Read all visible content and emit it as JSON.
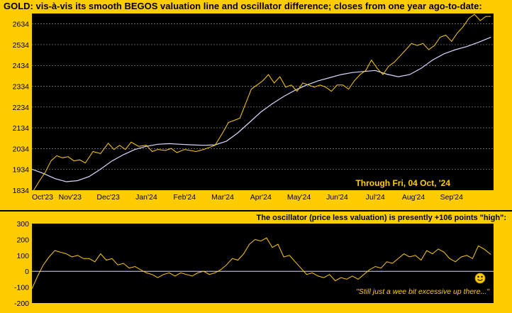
{
  "header": {
    "title": "GOLD:  vis-à-vis its smooth BEGOS valuation line and oscillator difference; closes from one year ago-to-date:"
  },
  "annotations": {
    "through_date": "Through Fri, 04 Oct, '24",
    "osc_title": "The oscillator (price less valuation) is presently +106 points \"high\":",
    "quote": "\"Still just a wee bit excessive up there...\""
  },
  "colors": {
    "background": "#ffcc00",
    "plot_bg": "#000000",
    "price_line": "#ffcc00",
    "valuation_line": "#d8d8ff",
    "grid": "#888888",
    "emoji": "#ffcc00"
  },
  "icons": {
    "emoji": "smiley-face-icon"
  },
  "chart_data": [
    {
      "type": "line",
      "title": "GOLD:  vis-à-vis its smooth BEGOS valuation line and oscillator difference; closes from one year ago-to-date:",
      "xlabel": "",
      "ylabel": "",
      "x_ticks": [
        "Oct'23",
        "Nov'23",
        "Dec'23",
        "Jan'24",
        "Feb'24",
        "Mar'24",
        "Apr'24",
        "May'24",
        "Jun'24",
        "Jul'24",
        "Aug'24",
        "Sep'24"
      ],
      "y_ticks": [
        1834,
        1934,
        2034,
        2134,
        2234,
        2334,
        2434,
        2534,
        2634
      ],
      "ylim": [
        1834,
        2684
      ],
      "xlim": [
        0,
        12.1
      ],
      "grid": true,
      "series": [
        {
          "kind": "price",
          "x": [
            0,
            0.2,
            0.35,
            0.5,
            0.65,
            0.8,
            0.95,
            1.1,
            1.25,
            1.4,
            1.6,
            1.8,
            2.0,
            2.15,
            2.3,
            2.45,
            2.6,
            2.8,
            3.0,
            3.15,
            3.3,
            3.5,
            3.65,
            3.8,
            4.0,
            4.15,
            4.3,
            4.5,
            4.65,
            4.8,
            5.0,
            5.15,
            5.3,
            5.45,
            5.6,
            5.75,
            5.9,
            6.05,
            6.2,
            6.35,
            6.5,
            6.65,
            6.8,
            6.95,
            7.1,
            7.25,
            7.4,
            7.55,
            7.7,
            7.85,
            8.0,
            8.15,
            8.3,
            8.45,
            8.6,
            8.75,
            8.9,
            9.05,
            9.2,
            9.35,
            9.5,
            9.65,
            9.8,
            9.95,
            10.1,
            10.25,
            10.4,
            10.55,
            10.7,
            10.85,
            11.0,
            11.15,
            11.3,
            11.45,
            11.6,
            11.75,
            11.9,
            12.03
          ],
          "y": [
            1820,
            1880,
            1920,
            1975,
            2000,
            1990,
            1995,
            1975,
            1980,
            1965,
            2020,
            2010,
            2060,
            2030,
            2050,
            2030,
            2065,
            2045,
            2050,
            2020,
            2030,
            2025,
            2035,
            2015,
            2030,
            2025,
            2020,
            2030,
            2040,
            2050,
            2110,
            2160,
            2170,
            2180,
            2250,
            2320,
            2340,
            2360,
            2390,
            2350,
            2380,
            2330,
            2340,
            2310,
            2350,
            2340,
            2330,
            2340,
            2330,
            2310,
            2340,
            2340,
            2320,
            2360,
            2390,
            2410,
            2460,
            2420,
            2390,
            2430,
            2450,
            2480,
            2510,
            2540,
            2530,
            2540,
            2510,
            2530,
            2570,
            2580,
            2550,
            2590,
            2620,
            2660,
            2680,
            2650,
            2670,
            2670
          ]
        },
        {
          "kind": "valuation",
          "x": [
            0,
            0.3,
            0.6,
            0.9,
            1.2,
            1.5,
            1.8,
            2.1,
            2.4,
            2.7,
            3.0,
            3.3,
            3.6,
            3.9,
            4.2,
            4.5,
            4.8,
            5.1,
            5.4,
            5.7,
            6.0,
            6.3,
            6.6,
            6.9,
            7.2,
            7.5,
            7.8,
            8.1,
            8.4,
            8.7,
            9.0,
            9.3,
            9.6,
            9.9,
            10.2,
            10.5,
            10.8,
            11.1,
            11.4,
            11.7,
            12.03
          ],
          "y": [
            1935,
            1915,
            1890,
            1875,
            1880,
            1900,
            1935,
            1975,
            2005,
            2030,
            2045,
            2055,
            2058,
            2055,
            2052,
            2050,
            2052,
            2070,
            2110,
            2160,
            2210,
            2250,
            2285,
            2315,
            2340,
            2360,
            2375,
            2390,
            2400,
            2405,
            2410,
            2392,
            2380,
            2390,
            2420,
            2460,
            2490,
            2510,
            2525,
            2545,
            2570
          ]
        }
      ]
    },
    {
      "type": "line",
      "title": "The oscillator (price less valuation) is presently +106 points \"high\":",
      "xlabel": "",
      "ylabel": "",
      "y_ticks": [
        300,
        200,
        100,
        0,
        -100,
        -200
      ],
      "ylim": [
        -200,
        300
      ],
      "xlim": [
        0,
        12.1
      ],
      "zero_line": true,
      "grid": false,
      "series": [
        {
          "kind": "oscillator",
          "x": [
            0,
            0.15,
            0.3,
            0.45,
            0.6,
            0.75,
            0.9,
            1.05,
            1.2,
            1.35,
            1.5,
            1.65,
            1.8,
            1.95,
            2.1,
            2.25,
            2.4,
            2.55,
            2.7,
            2.85,
            3.0,
            3.15,
            3.3,
            3.45,
            3.6,
            3.75,
            3.9,
            4.05,
            4.2,
            4.35,
            4.5,
            4.65,
            4.8,
            4.95,
            5.1,
            5.25,
            5.4,
            5.55,
            5.7,
            5.85,
            6.0,
            6.15,
            6.3,
            6.45,
            6.6,
            6.75,
            6.9,
            7.05,
            7.2,
            7.35,
            7.5,
            7.65,
            7.8,
            7.95,
            8.1,
            8.25,
            8.4,
            8.55,
            8.7,
            8.85,
            9.0,
            9.15,
            9.3,
            9.45,
            9.6,
            9.75,
            9.9,
            10.05,
            10.2,
            10.35,
            10.5,
            10.65,
            10.8,
            10.95,
            11.1,
            11.25,
            11.4,
            11.55,
            11.7,
            11.85,
            12.03
          ],
          "y": [
            -110,
            -30,
            40,
            90,
            130,
            120,
            110,
            90,
            100,
            80,
            80,
            60,
            110,
            70,
            80,
            40,
            50,
            20,
            30,
            10,
            -10,
            -20,
            -40,
            -20,
            -10,
            -30,
            -10,
            -20,
            -30,
            -10,
            0,
            -20,
            -10,
            10,
            40,
            80,
            70,
            110,
            170,
            200,
            190,
            210,
            150,
            170,
            90,
            100,
            60,
            20,
            -20,
            -10,
            -30,
            -40,
            -20,
            -60,
            -40,
            -50,
            -30,
            -50,
            -20,
            10,
            30,
            20,
            60,
            50,
            80,
            110,
            90,
            100,
            70,
            130,
            110,
            140,
            120,
            80,
            60,
            90,
            100,
            80,
            160,
            140,
            106
          ]
        }
      ]
    }
  ]
}
